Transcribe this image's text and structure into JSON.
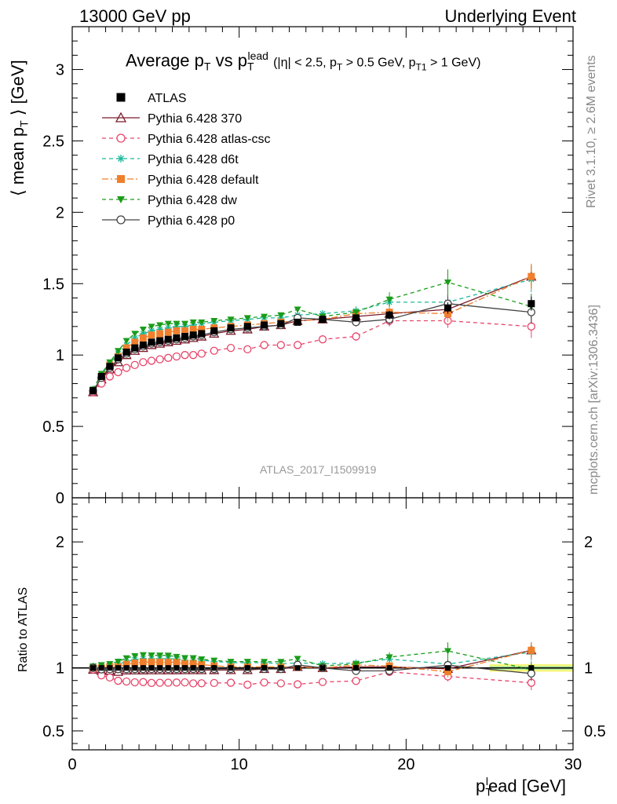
{
  "header": {
    "left": "13000 GeV pp",
    "right": "Underlying Event"
  },
  "side_labels": {
    "rivet": "Rivet 3.1.10, ≥ 2.6M events",
    "mcplots": "mcplots.cern.ch [arXiv:1306.3436]"
  },
  "watermark": "ATLAS_2017_I1509919",
  "plot_title": {
    "main": "Average p",
    "main_sub": "T",
    "vs": " vs p",
    "vs_sub": "T",
    "vs_sup": "lead",
    "cuts": "(|η| < 2.5, p",
    "cuts_sub1": "T",
    "cuts_mid": " > 0.5 GeV, p",
    "cuts_sub2": "T1",
    "cuts_end": " > 1 GeV)"
  },
  "y_axis_main": {
    "label": "⟨ mean p",
    "label_sub": "T",
    "label_end": " ⟩ [GeV]"
  },
  "y_axis_ratio": {
    "label": "Ratio to ATLAS"
  },
  "x_axis": {
    "label": "p",
    "label_sub": "T",
    "label_sup": "l",
    "label_end": "ead [GeV]"
  },
  "chart_data": [
    {
      "type": "scatter",
      "title": "Average pT vs pT lead (|η| < 2.5, pT > 0.5 GeV, pT1 > 1 GeV)",
      "xlim": [
        0,
        30
      ],
      "ylim": [
        0,
        3.3
      ],
      "x_ticks": [
        0,
        10,
        20,
        30
      ],
      "y_ticks": [
        0,
        0.5,
        1,
        1.5,
        2,
        2.5,
        3
      ],
      "y_tick_labels": [
        "0",
        "0.5",
        "1",
        "1.5",
        "2",
        "2.5",
        "3"
      ],
      "x": [
        1.25,
        1.75,
        2.25,
        2.75,
        3.25,
        3.75,
        4.25,
        4.75,
        5.25,
        5.75,
        6.25,
        6.75,
        7.25,
        7.75,
        8.5,
        9.5,
        10.5,
        11.5,
        12.5,
        13.5,
        15,
        17,
        19,
        22.5,
        27.5
      ],
      "legend_position": "top-left",
      "series": [
        {
          "name": "ATLAS",
          "color": "#000000",
          "marker": "square",
          "line": "none",
          "values": [
            0.75,
            0.85,
            0.92,
            0.98,
            1.02,
            1.05,
            1.07,
            1.09,
            1.1,
            1.11,
            1.12,
            1.13,
            1.14,
            1.15,
            1.17,
            1.19,
            1.2,
            1.21,
            1.22,
            1.23,
            1.25,
            1.26,
            1.28,
            1.33,
            1.36
          ],
          "errors": [
            0.01,
            0.01,
            0.01,
            0.01,
            0.01,
            0.01,
            0.01,
            0.01,
            0.01,
            0.01,
            0.01,
            0.01,
            0.01,
            0.01,
            0.01,
            0.01,
            0.01,
            0.01,
            0.01,
            0.01,
            0.02,
            0.02,
            0.03,
            0.04,
            0.05
          ]
        },
        {
          "name": "Pythia 6.428 370",
          "color": "#7a1a2a",
          "marker": "triangle-open",
          "line": "solid",
          "values": [
            0.74,
            0.83,
            0.9,
            0.95,
            1.0,
            1.03,
            1.05,
            1.07,
            1.08,
            1.09,
            1.1,
            1.11,
            1.12,
            1.13,
            1.15,
            1.17,
            1.18,
            1.2,
            1.21,
            1.24,
            1.25,
            1.27,
            1.29,
            1.32,
            1.55
          ],
          "errors": [
            0.01,
            0.01,
            0.01,
            0.01,
            0.01,
            0.01,
            0.01,
            0.01,
            0.01,
            0.01,
            0.01,
            0.01,
            0.01,
            0.01,
            0.01,
            0.01,
            0.01,
            0.01,
            0.01,
            0.01,
            0.02,
            0.02,
            0.03,
            0.05,
            0.08
          ]
        },
        {
          "name": "Pythia 6.428 atlas-csc",
          "color": "#e8456a",
          "marker": "circle-open",
          "line": "dashed",
          "values": [
            0.74,
            0.8,
            0.85,
            0.88,
            0.91,
            0.93,
            0.95,
            0.96,
            0.97,
            0.98,
            0.99,
            1.0,
            1.0,
            1.01,
            1.03,
            1.05,
            1.04,
            1.07,
            1.07,
            1.07,
            1.11,
            1.13,
            1.24,
            1.24,
            1.2
          ],
          "errors": [
            0.01,
            0.01,
            0.01,
            0.01,
            0.01,
            0.01,
            0.01,
            0.01,
            0.01,
            0.01,
            0.01,
            0.01,
            0.01,
            0.01,
            0.01,
            0.01,
            0.01,
            0.01,
            0.01,
            0.01,
            0.02,
            0.03,
            0.04,
            0.05,
            0.08
          ]
        },
        {
          "name": "Pythia 6.428 d6t",
          "color": "#1ab89a",
          "marker": "star",
          "line": "dashed",
          "values": [
            0.76,
            0.86,
            0.94,
            1.01,
            1.07,
            1.12,
            1.15,
            1.17,
            1.18,
            1.19,
            1.2,
            1.2,
            1.21,
            1.22,
            1.23,
            1.24,
            1.25,
            1.26,
            1.26,
            1.28,
            1.29,
            1.31,
            1.37,
            1.37,
            1.53
          ],
          "errors": [
            0.01,
            0.01,
            0.01,
            0.01,
            0.01,
            0.01,
            0.01,
            0.01,
            0.01,
            0.01,
            0.01,
            0.01,
            0.01,
            0.01,
            0.01,
            0.01,
            0.01,
            0.01,
            0.01,
            0.01,
            0.02,
            0.03,
            0.04,
            0.06,
            0.09
          ]
        },
        {
          "name": "Pythia 6.428 default",
          "color": "#f07f2c",
          "marker": "square",
          "line": "dashdot",
          "values": [
            0.75,
            0.85,
            0.93,
            0.99,
            1.05,
            1.09,
            1.12,
            1.14,
            1.15,
            1.16,
            1.17,
            1.17,
            1.18,
            1.18,
            1.19,
            1.2,
            1.21,
            1.22,
            1.23,
            1.24,
            1.25,
            1.29,
            1.3,
            1.29,
            1.55
          ],
          "errors": [
            0.01,
            0.01,
            0.01,
            0.01,
            0.01,
            0.01,
            0.01,
            0.01,
            0.01,
            0.01,
            0.01,
            0.01,
            0.01,
            0.01,
            0.01,
            0.01,
            0.01,
            0.01,
            0.01,
            0.01,
            0.02,
            0.03,
            0.04,
            0.06,
            0.09
          ]
        },
        {
          "name": "Pythia 6.428 dw",
          "color": "#1a9c1a",
          "marker": "triangle-down",
          "line": "dashed",
          "values": [
            0.76,
            0.87,
            0.95,
            1.03,
            1.1,
            1.15,
            1.18,
            1.2,
            1.21,
            1.22,
            1.22,
            1.22,
            1.23,
            1.23,
            1.24,
            1.25,
            1.26,
            1.27,
            1.28,
            1.32,
            1.27,
            1.3,
            1.39,
            1.51,
            1.34
          ],
          "errors": [
            0.01,
            0.01,
            0.01,
            0.01,
            0.01,
            0.01,
            0.01,
            0.01,
            0.01,
            0.01,
            0.01,
            0.01,
            0.01,
            0.01,
            0.01,
            0.01,
            0.01,
            0.01,
            0.01,
            0.02,
            0.02,
            0.03,
            0.05,
            0.09,
            0.09
          ]
        },
        {
          "name": "Pythia 6.428 p0",
          "color": "#444444",
          "marker": "circle-open",
          "line": "solid",
          "values": [
            0.75,
            0.84,
            0.91,
            0.97,
            1.01,
            1.04,
            1.06,
            1.08,
            1.09,
            1.1,
            1.11,
            1.12,
            1.13,
            1.14,
            1.16,
            1.18,
            1.19,
            1.2,
            1.21,
            1.26,
            1.25,
            1.23,
            1.25,
            1.36,
            1.3
          ],
          "errors": [
            0.01,
            0.01,
            0.01,
            0.01,
            0.01,
            0.01,
            0.01,
            0.01,
            0.01,
            0.01,
            0.01,
            0.01,
            0.01,
            0.01,
            0.01,
            0.01,
            0.01,
            0.01,
            0.01,
            0.01,
            0.02,
            0.03,
            0.04,
            0.06,
            0.08
          ]
        }
      ]
    },
    {
      "type": "scatter",
      "ylabel": "Ratio to ATLAS",
      "xlim": [
        0,
        30
      ],
      "ylim": [
        0.35,
        2.35
      ],
      "y_ticks": [
        0.5,
        1,
        2
      ],
      "y_tick_labels": [
        "0.5",
        "1",
        "2"
      ],
      "x_tick_labels": [
        "0",
        "10",
        "20",
        "30"
      ],
      "reference": 1.0,
      "uncertainty_band": {
        "x": [
          25,
          30
        ],
        "yellow": [
          0.97,
          1.03
        ],
        "green": [
          0.985,
          1.015
        ],
        "yellow_color": "#f5f57a",
        "green_color": "#b6f0a0"
      }
    }
  ]
}
